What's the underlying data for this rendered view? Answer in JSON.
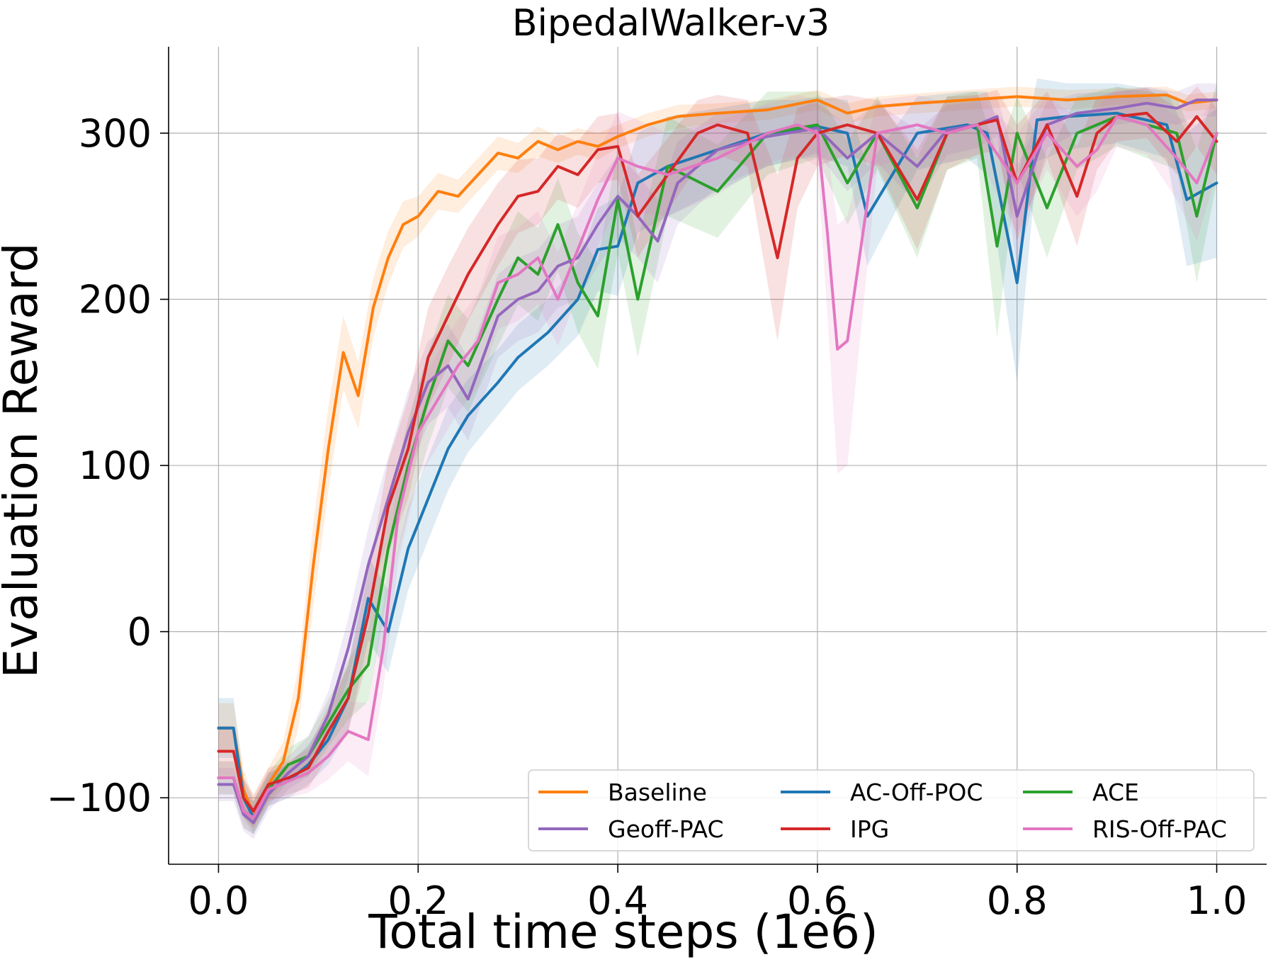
{
  "chart_data": {
    "type": "line",
    "title": "BipedalWalker-v3",
    "xlabel": "Total time steps (1e6)",
    "ylabel": "Evaluation Reward",
    "xlim": [
      -0.05,
      1.05
    ],
    "ylim": [
      -140,
      352
    ],
    "xticks": [
      0.0,
      0.2,
      0.4,
      0.6,
      0.8,
      1.0
    ],
    "xtick_labels": [
      "0.0",
      "0.2",
      "0.4",
      "0.6",
      "0.8",
      "1.0"
    ],
    "yticks": [
      -100,
      0,
      100,
      200,
      300
    ],
    "ytick_labels": [
      "−100",
      "0",
      "100",
      "200",
      "300"
    ],
    "grid": true,
    "legend_position": "bottom-right",
    "legend_columns": 3,
    "series": [
      {
        "name": "Baseline",
        "color": "#ff7f0e",
        "x": [
          0.0,
          0.015,
          0.025,
          0.035,
          0.05,
          0.065,
          0.08,
          0.095,
          0.11,
          0.125,
          0.14,
          0.155,
          0.17,
          0.185,
          0.2,
          0.22,
          0.24,
          0.26,
          0.28,
          0.3,
          0.32,
          0.34,
          0.36,
          0.38,
          0.4,
          0.43,
          0.46,
          0.5,
          0.55,
          0.6,
          0.63,
          0.66,
          0.7,
          0.75,
          0.8,
          0.85,
          0.9,
          0.95,
          0.97,
          1.0
        ],
        "y": [
          -58,
          -58,
          -95,
          -110,
          -92,
          -78,
          -40,
          40,
          110,
          168,
          142,
          195,
          225,
          245,
          250,
          265,
          262,
          275,
          288,
          285,
          295,
          290,
          295,
          292,
          298,
          305,
          310,
          312,
          314,
          320,
          312,
          316,
          318,
          320,
          322,
          320,
          322,
          323,
          318,
          320
        ],
        "spread": [
          15,
          15,
          12,
          10,
          10,
          12,
          18,
          25,
          25,
          22,
          20,
          18,
          16,
          14,
          12,
          11,
          10,
          10,
          10,
          9,
          9,
          8,
          8,
          8,
          7,
          7,
          7,
          6,
          6,
          6,
          6,
          6,
          6,
          6,
          6,
          6,
          5,
          5,
          5,
          5
        ]
      },
      {
        "name": "AC-Off-POC",
        "color": "#1f77b4",
        "x": [
          0.0,
          0.015,
          0.025,
          0.035,
          0.05,
          0.07,
          0.09,
          0.11,
          0.13,
          0.15,
          0.17,
          0.19,
          0.21,
          0.23,
          0.25,
          0.28,
          0.3,
          0.33,
          0.36,
          0.38,
          0.4,
          0.42,
          0.45,
          0.5,
          0.55,
          0.58,
          0.6,
          0.63,
          0.65,
          0.7,
          0.75,
          0.77,
          0.8,
          0.82,
          0.85,
          0.9,
          0.95,
          0.97,
          1.0
        ],
        "y": [
          -58,
          -58,
          -100,
          -112,
          -95,
          -90,
          -80,
          -65,
          -40,
          20,
          0,
          50,
          80,
          110,
          130,
          150,
          165,
          180,
          200,
          230,
          232,
          270,
          280,
          290,
          300,
          302,
          304,
          300,
          250,
          300,
          305,
          300,
          210,
          308,
          310,
          312,
          305,
          260,
          270
        ],
        "spread": [
          18,
          18,
          12,
          10,
          10,
          10,
          12,
          15,
          20,
          25,
          25,
          25,
          25,
          25,
          22,
          20,
          20,
          20,
          22,
          25,
          30,
          30,
          30,
          25,
          20,
          18,
          18,
          20,
          30,
          22,
          20,
          25,
          60,
          25,
          20,
          18,
          20,
          40,
          45
        ]
      },
      {
        "name": "ACE",
        "color": "#2ca02c",
        "x": [
          0.0,
          0.015,
          0.025,
          0.035,
          0.05,
          0.07,
          0.09,
          0.11,
          0.13,
          0.15,
          0.17,
          0.19,
          0.21,
          0.23,
          0.25,
          0.28,
          0.3,
          0.32,
          0.34,
          0.36,
          0.38,
          0.4,
          0.42,
          0.45,
          0.5,
          0.55,
          0.6,
          0.63,
          0.66,
          0.7,
          0.73,
          0.76,
          0.78,
          0.8,
          0.83,
          0.86,
          0.9,
          0.93,
          0.96,
          0.98,
          1.0
        ],
        "y": [
          -88,
          -88,
          -108,
          -112,
          -95,
          -80,
          -75,
          -55,
          -35,
          -20,
          50,
          100,
          140,
          175,
          160,
          200,
          225,
          215,
          245,
          210,
          190,
          260,
          200,
          280,
          265,
          300,
          305,
          270,
          300,
          255,
          300,
          305,
          232,
          300,
          255,
          300,
          310,
          305,
          300,
          250,
          300
        ],
        "spread": [
          10,
          10,
          10,
          10,
          10,
          10,
          12,
          14,
          18,
          22,
          25,
          28,
          28,
          28,
          28,
          28,
          28,
          28,
          28,
          30,
          32,
          32,
          35,
          30,
          28,
          25,
          20,
          25,
          22,
          30,
          22,
          20,
          55,
          22,
          30,
          22,
          18,
          20,
          22,
          40,
          30
        ]
      },
      {
        "name": "Geoff-PAC",
        "color": "#9467bd",
        "x": [
          0.0,
          0.015,
          0.025,
          0.035,
          0.05,
          0.07,
          0.09,
          0.11,
          0.13,
          0.15,
          0.17,
          0.19,
          0.21,
          0.23,
          0.25,
          0.28,
          0.3,
          0.32,
          0.34,
          0.36,
          0.38,
          0.4,
          0.42,
          0.44,
          0.46,
          0.5,
          0.55,
          0.6,
          0.63,
          0.66,
          0.7,
          0.73,
          0.76,
          0.78,
          0.8,
          0.83,
          0.86,
          0.9,
          0.93,
          0.96,
          0.98,
          1.0
        ],
        "y": [
          -92,
          -92,
          -110,
          -115,
          -98,
          -85,
          -75,
          -50,
          -10,
          40,
          80,
          120,
          150,
          160,
          140,
          190,
          200,
          205,
          220,
          225,
          245,
          262,
          250,
          235,
          270,
          290,
          298,
          303,
          285,
          300,
          280,
          302,
          305,
          310,
          250,
          305,
          312,
          315,
          318,
          315,
          320,
          320
        ],
        "spread": [
          10,
          10,
          10,
          10,
          10,
          10,
          12,
          14,
          18,
          22,
          25,
          25,
          25,
          25,
          25,
          25,
          25,
          25,
          25,
          25,
          25,
          25,
          25,
          25,
          25,
          22,
          18,
          15,
          20,
          18,
          22,
          15,
          14,
          12,
          30,
          14,
          12,
          10,
          10,
          10,
          10,
          10
        ]
      },
      {
        "name": "IPG",
        "color": "#d62728",
        "x": [
          0.0,
          0.015,
          0.025,
          0.035,
          0.05,
          0.07,
          0.09,
          0.11,
          0.13,
          0.15,
          0.17,
          0.19,
          0.21,
          0.23,
          0.25,
          0.28,
          0.3,
          0.32,
          0.34,
          0.36,
          0.38,
          0.4,
          0.42,
          0.45,
          0.48,
          0.5,
          0.53,
          0.56,
          0.58,
          0.6,
          0.63,
          0.66,
          0.7,
          0.73,
          0.76,
          0.78,
          0.8,
          0.83,
          0.86,
          0.88,
          0.9,
          0.93,
          0.96,
          0.98,
          1.0
        ],
        "y": [
          -72,
          -72,
          -100,
          -108,
          -92,
          -88,
          -82,
          -60,
          -40,
          10,
          75,
          110,
          165,
          190,
          215,
          245,
          262,
          265,
          280,
          275,
          290,
          292,
          250,
          275,
          300,
          305,
          300,
          225,
          285,
          300,
          305,
          300,
          260,
          300,
          305,
          308,
          270,
          305,
          262,
          300,
          310,
          312,
          295,
          310,
          295
        ],
        "spread": [
          15,
          15,
          12,
          10,
          10,
          10,
          12,
          15,
          20,
          25,
          28,
          30,
          30,
          30,
          28,
          25,
          22,
          20,
          20,
          20,
          20,
          20,
          25,
          22,
          20,
          18,
          20,
          50,
          30,
          20,
          18,
          20,
          30,
          22,
          18,
          18,
          35,
          20,
          30,
          22,
          15,
          15,
          20,
          18,
          20
        ]
      },
      {
        "name": "RIS-Off-PAC",
        "color": "#e377c2",
        "x": [
          0.0,
          0.015,
          0.025,
          0.035,
          0.05,
          0.07,
          0.09,
          0.11,
          0.13,
          0.15,
          0.165,
          0.18,
          0.2,
          0.22,
          0.24,
          0.26,
          0.28,
          0.3,
          0.32,
          0.34,
          0.36,
          0.38,
          0.4,
          0.42,
          0.45,
          0.5,
          0.55,
          0.58,
          0.6,
          0.61,
          0.62,
          0.63,
          0.66,
          0.7,
          0.73,
          0.76,
          0.8,
          0.83,
          0.86,
          0.88,
          0.9,
          0.93,
          0.96,
          0.98,
          1.0
        ],
        "y": [
          -88,
          -88,
          -108,
          -112,
          -95,
          -90,
          -85,
          -75,
          -60,
          -65,
          -10,
          70,
          120,
          140,
          160,
          175,
          210,
          215,
          225,
          200,
          230,
          260,
          285,
          280,
          275,
          285,
          300,
          305,
          300,
          240,
          170,
          175,
          300,
          305,
          300,
          305,
          270,
          300,
          280,
          290,
          310,
          305,
          285,
          270,
          300
        ],
        "spread": [
          10,
          10,
          10,
          10,
          10,
          10,
          12,
          14,
          18,
          22,
          25,
          28,
          28,
          28,
          28,
          28,
          28,
          28,
          28,
          28,
          28,
          28,
          28,
          28,
          25,
          22,
          18,
          18,
          20,
          50,
          75,
          75,
          20,
          18,
          18,
          18,
          30,
          22,
          30,
          25,
          18,
          18,
          25,
          35,
          25
        ]
      }
    ]
  }
}
